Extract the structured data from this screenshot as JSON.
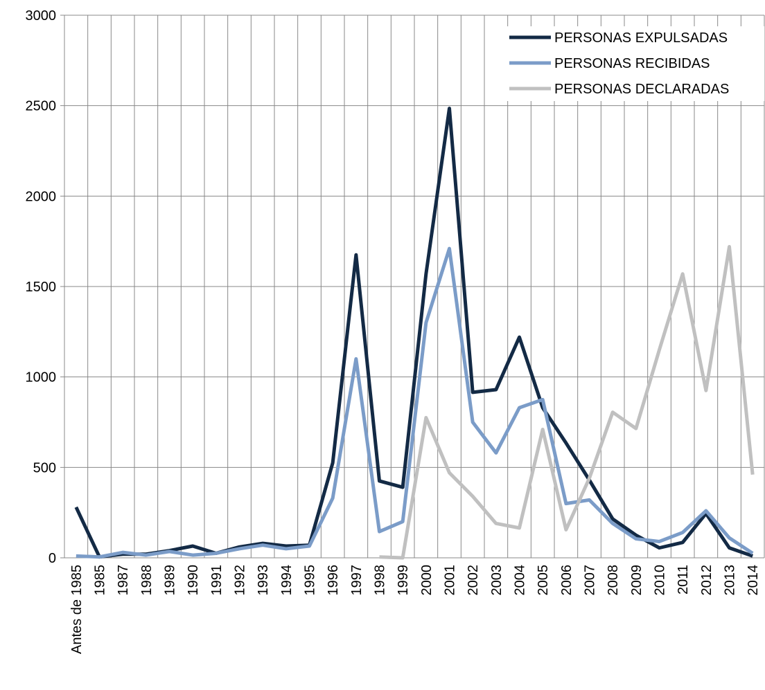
{
  "chart_data": {
    "type": "line",
    "categories": [
      "Antes de 1985",
      "1985",
      "1987",
      "1988",
      "1989",
      "1990",
      "1991",
      "1992",
      "1993",
      "1994",
      "1995",
      "1996",
      "1997",
      "1998",
      "1999",
      "2000",
      "2001",
      "2002",
      "2003",
      "2004",
      "2005",
      "2006",
      "2007",
      "2008",
      "2009",
      "2010",
      "2011",
      "2012",
      "2013",
      "2014"
    ],
    "series": [
      {
        "name": "PERSONAS EXPULSADAS",
        "color": "#132a45",
        "values": [
          280,
          5,
          20,
          20,
          40,
          65,
          25,
          60,
          80,
          65,
          70,
          525,
          1675,
          425,
          390,
          1570,
          2485,
          915,
          930,
          1220,
          830,
          635,
          430,
          215,
          125,
          55,
          85,
          245,
          55,
          10
        ]
      },
      {
        "name": "PERSONAS RECIBIDAS",
        "color": "#7b9cc8",
        "values": [
          10,
          5,
          30,
          15,
          35,
          15,
          25,
          50,
          70,
          50,
          65,
          330,
          1100,
          145,
          200,
          1300,
          1710,
          750,
          580,
          830,
          875,
          300,
          320,
          190,
          105,
          90,
          140,
          260,
          110,
          25
        ]
      },
      {
        "name": "PERSONAS DECLARADAS",
        "color": "#c0c0c0",
        "values": [
          null,
          null,
          null,
          null,
          null,
          null,
          null,
          null,
          null,
          null,
          null,
          null,
          null,
          5,
          0,
          775,
          470,
          340,
          190,
          165,
          710,
          155,
          440,
          805,
          715,
          1150,
          1570,
          925,
          1720,
          460
        ]
      }
    ],
    "ylim": [
      0,
      3000
    ],
    "yticks": [
      0,
      500,
      1000,
      1500,
      2000,
      2500,
      3000
    ],
    "grid": true,
    "legend": "upper right"
  }
}
